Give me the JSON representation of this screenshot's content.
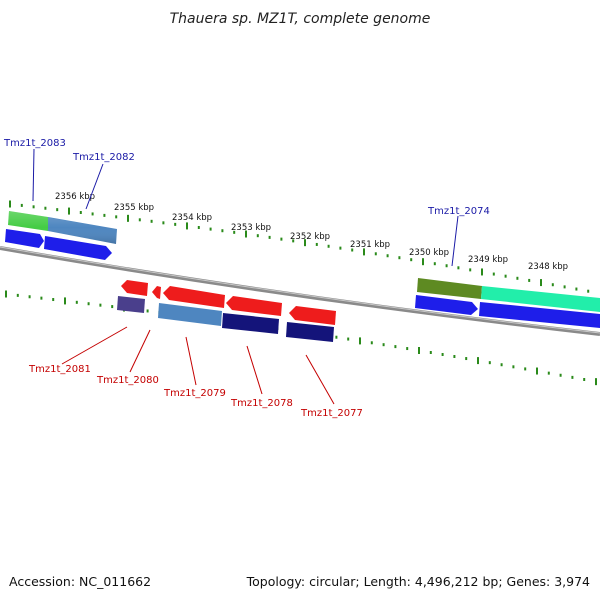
{
  "title": "Thauera sp. MZ1T, complete genome",
  "footer": {
    "accession": "Accession: NC_011662",
    "summary": "Topology: circular; Length: 4,496,212 bp; Genes: 3,974"
  },
  "colors": {
    "backbone": "#8a8a8a",
    "tick": "#2a8a1a",
    "forward_label": "#1a1aa6",
    "reverse_label": "#c40000",
    "cds_forward": "#1e1eea",
    "cds_reverse": "#ee1c1c",
    "gene_light_blue": "#4e86c0",
    "gene_navy": "#14147a",
    "gene_purple": "#4a3f8c",
    "gene_green": "#44cc44",
    "gene_olive": "#5e8a22",
    "gene_teal": "#22eeaa"
  },
  "kbp_labels": [
    "2356 kbp",
    "2355 kbp",
    "2354 kbp",
    "2353 kbp",
    "2352 kbp",
    "2351 kbp",
    "2350 kbp",
    "2349 kbp",
    "2348 kbp"
  ],
  "forward_genes": [
    "Tmz1t_2083",
    "Tmz1t_2082",
    "Tmz1t_2074"
  ],
  "reverse_genes": [
    "Tmz1t_2081",
    "Tmz1t_2080",
    "Tmz1t_2079",
    "Tmz1t_2078",
    "Tmz1t_2077"
  ]
}
